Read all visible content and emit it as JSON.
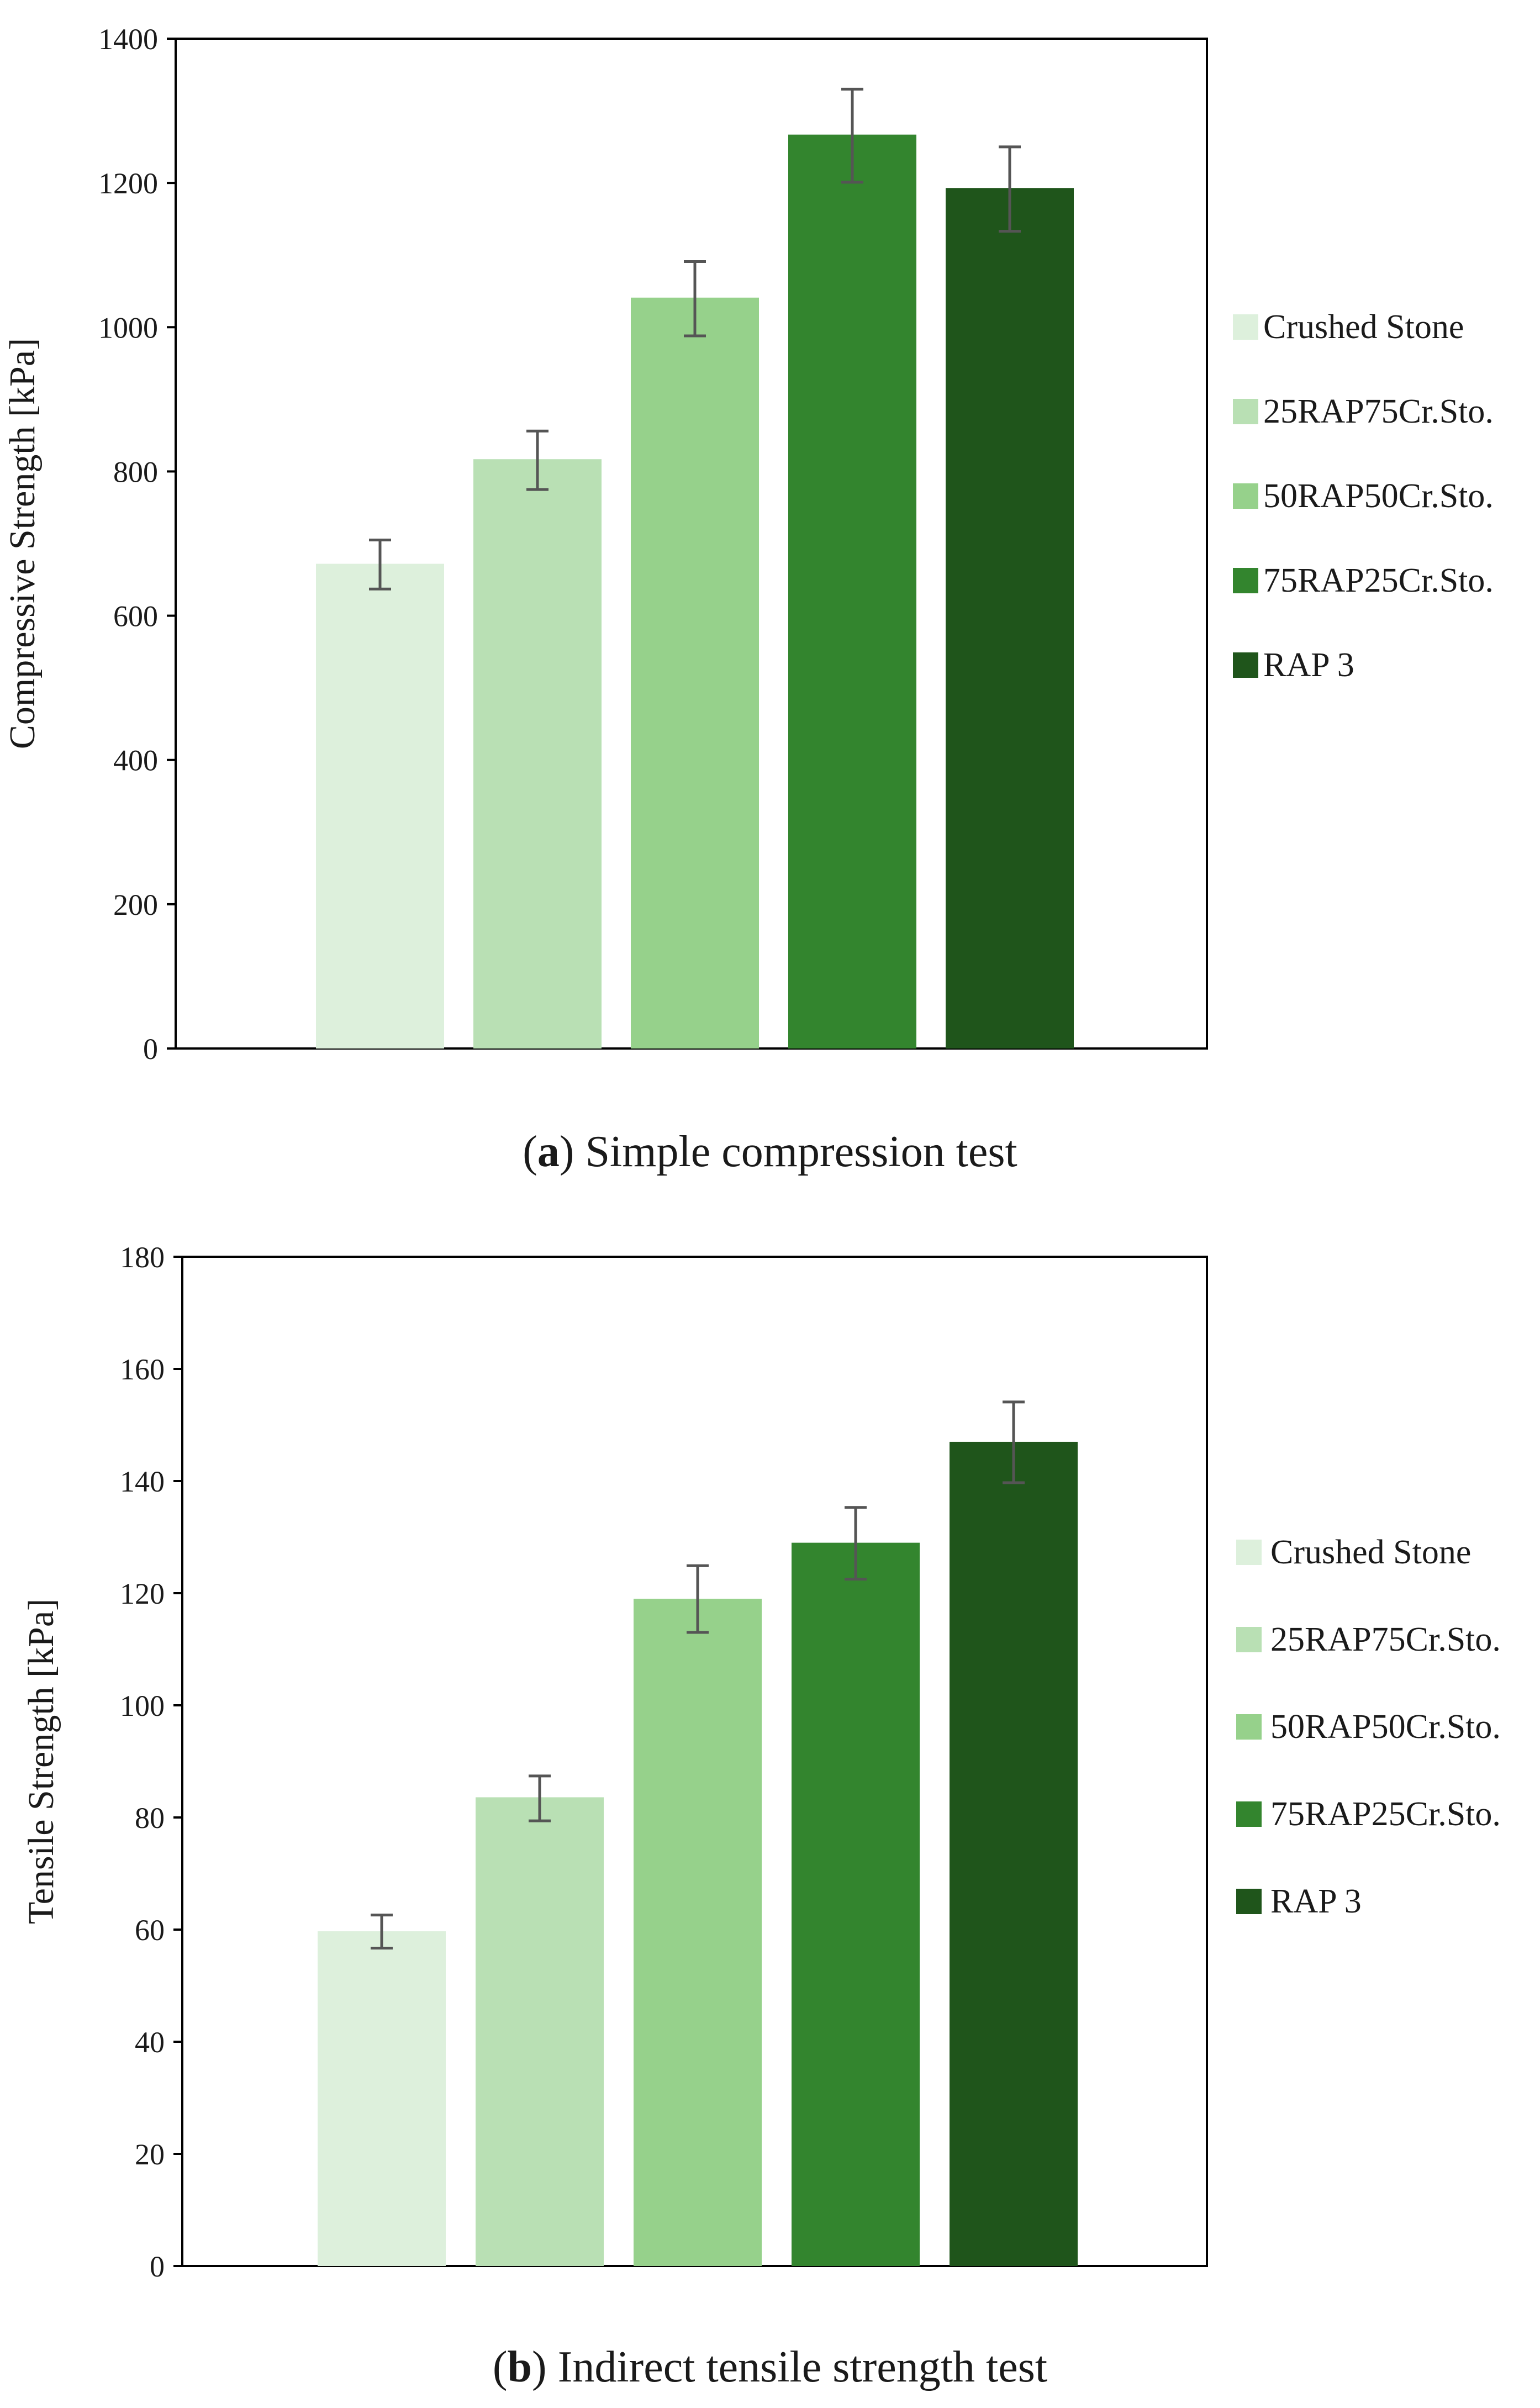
{
  "colors": {
    "crushed_stone": "#ddf0dc",
    "rap25": "#b9e0b4",
    "rap50": "#96d18b",
    "rap75": "#33852e",
    "rap100": "#1f551b",
    "error_bar": "#555555",
    "axis": "#000000"
  },
  "chart_data": [
    {
      "id": "a",
      "type": "bar",
      "caption_letter": "a",
      "caption_text": "Simple compression test",
      "ylabel": "Compressive Strength  [kPa]",
      "xlabel": "",
      "ylim": [
        0,
        1400
      ],
      "yticks": [
        0,
        200,
        400,
        600,
        800,
        1000,
        1200,
        1400
      ],
      "categories": [
        "Crushed Stone",
        "25RAP75Cr.Sto.",
        "50RAP50Cr.Sto.",
        "75RAP25Cr.Sto.",
        "RAP 3"
      ],
      "values": [
        672,
        817,
        1041,
        1267,
        1193
      ],
      "error_low": [
        637,
        775,
        988,
        1201,
        1133
      ],
      "error_high": [
        705,
        856,
        1091,
        1330,
        1250
      ],
      "legend": {
        "position": "right",
        "entries": [
          "Crushed Stone",
          "25RAP75Cr.Sto.",
          "50RAP50Cr.Sto.",
          "75RAP25Cr.Sto.",
          "RAP 3"
        ]
      }
    },
    {
      "id": "b",
      "type": "bar",
      "caption_letter": "b",
      "caption_text": "Indirect tensile strength test",
      "ylabel": "Tensile Strength   [kPa]",
      "xlabel": "",
      "ylim": [
        0,
        180
      ],
      "yticks": [
        0,
        20,
        40,
        60,
        80,
        100,
        120,
        140,
        160,
        180
      ],
      "categories": [
        "Crushed Stone",
        "25RAP75Cr.Sto.",
        "50RAP50Cr.Sto.",
        "75RAP25Cr.Sto.",
        "RAP 3"
      ],
      "values": [
        59.7,
        83.6,
        119,
        129,
        147
      ],
      "error_low": [
        56.7,
        79.4,
        113,
        122.5,
        139.7
      ],
      "error_high": [
        62.6,
        87.4,
        124.9,
        135.3,
        154.1
      ],
      "legend": {
        "position": "right",
        "entries": [
          "Crushed Stone",
          "25RAP75Cr.Sto.",
          "50RAP50Cr.Sto.",
          "75RAP25Cr.Sto.",
          "RAP 3"
        ]
      }
    }
  ]
}
